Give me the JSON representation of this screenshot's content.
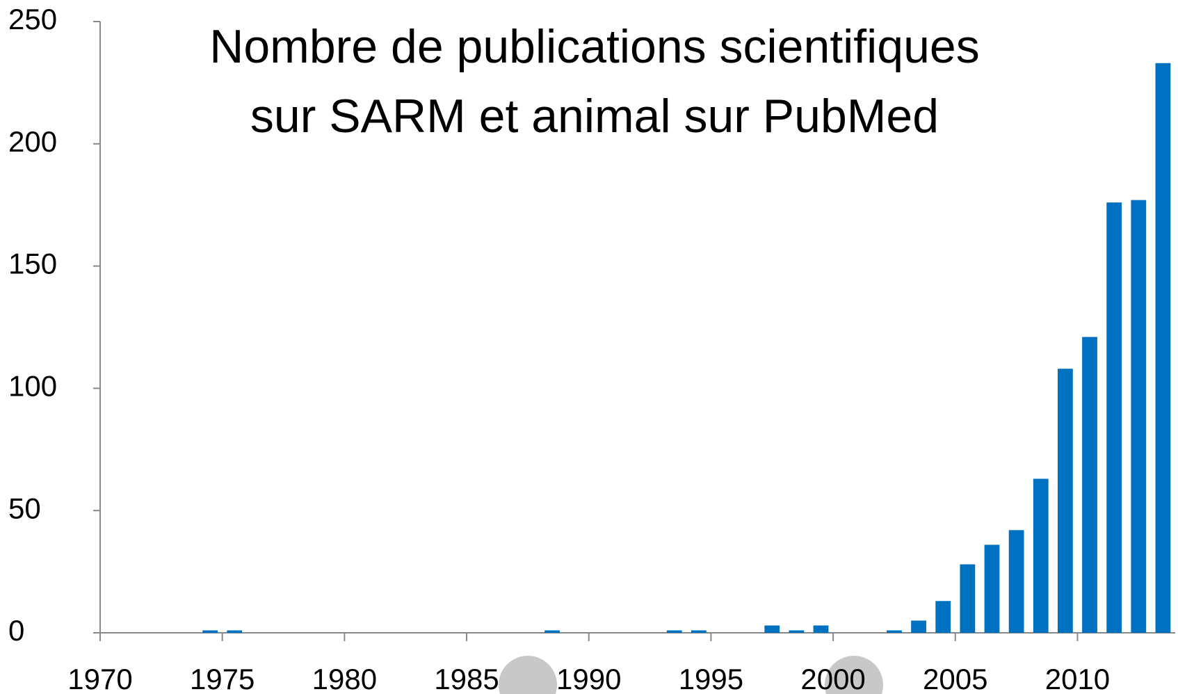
{
  "chart_data": {
    "type": "bar",
    "title": [
      "Nombre de publications scientifiques",
      "sur SARM et animal sur PubMed"
    ],
    "x": [
      1974,
      1975,
      1988,
      1993,
      1994,
      1997,
      1998,
      1999,
      2002,
      2003,
      2004,
      2005,
      2006,
      2007,
      2008,
      2009,
      2010,
      2011,
      2012,
      2013
    ],
    "values": [
      1,
      1,
      1,
      1,
      1,
      3,
      1,
      3,
      1,
      5,
      13,
      28,
      36,
      42,
      63,
      108,
      121,
      176,
      177,
      233
    ],
    "color": "#0070c0",
    "xlim": [
      1970,
      2014
    ],
    "xticks": [
      1970,
      1975,
      1980,
      1985,
      1990,
      1995,
      2000,
      2005,
      2010
    ],
    "ylim": [
      0,
      250
    ],
    "yticks": [
      0,
      50,
      100,
      150,
      200,
      250
    ],
    "grid": false
  }
}
